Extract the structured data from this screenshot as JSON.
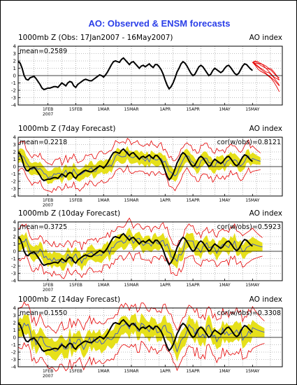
{
  "title": "AO: Observed & ENSM forecasts",
  "colors": {
    "title": "#2a3ee8",
    "observed": "#000000",
    "ensemble_range": "#e60000",
    "spread": "#e6e01a",
    "ensemble_mean": "#3a55d0",
    "grid": "#808080"
  },
  "chart_data": [
    {
      "type": "line",
      "header_left": "1000mb Z (Obs: 17Jan2007 - 16May2007)",
      "header_right": "AO index",
      "mean_label": "mean=0.2589",
      "cor_label": "",
      "ylim": [
        -4,
        4
      ],
      "yticks": [
        "4",
        "3",
        "2",
        "1",
        "0",
        "-1",
        "-2",
        "-3",
        "-4"
      ],
      "xticks": [
        "1FEB",
        "15FEB",
        "1MAR",
        "15MAR",
        "1APR",
        "15APR",
        "1MAY",
        "15MAY"
      ],
      "xtick_subtext": "2007",
      "x_range_days": [
        0,
        133
      ],
      "xtick_days": [
        15,
        29,
        43,
        57,
        74,
        88,
        104,
        118
      ],
      "observed": [
        1.9,
        1.7,
        1.0,
        0.0,
        -0.5,
        -0.6,
        -0.3,
        -0.2,
        -0.1,
        -0.4,
        -0.8,
        -1.2,
        -1.7,
        -1.9,
        -1.8,
        -1.7,
        -1.7,
        -1.6,
        -1.5,
        -1.5,
        -1.6,
        -1.3,
        -1.0,
        -1.2,
        -1.4,
        -1.0,
        -0.8,
        -0.9,
        -1.4,
        -1.6,
        -1.2,
        -1.0,
        -0.8,
        -0.6,
        -0.5,
        -0.6,
        -0.7,
        -0.7,
        -0.5,
        -0.3,
        -0.1,
        0.1,
        0.0,
        -0.2,
        0.1,
        0.5,
        1.0,
        1.5,
        1.9,
        2.0,
        1.9,
        1.8,
        2.2,
        2.4,
        2.1,
        1.8,
        1.5,
        1.8,
        1.9,
        1.6,
        1.3,
        1.0,
        1.3,
        1.4,
        1.2,
        1.4,
        1.6,
        1.3,
        1.1,
        1.5,
        1.5,
        1.2,
        0.8,
        0.2,
        -0.6,
        -1.3,
        -1.8,
        -1.5,
        -1.0,
        -0.3,
        0.5,
        1.0,
        1.6,
        1.9,
        1.7,
        1.3,
        0.8,
        0.3,
        0.0,
        0.2,
        0.7,
        1.2,
        1.4,
        1.2,
        0.8,
        0.4,
        0.0,
        0.2,
        0.7,
        1.0,
        0.8,
        0.6,
        0.4,
        0.6,
        1.0,
        1.3,
        1.4,
        1.1,
        0.7,
        0.3,
        0.1,
        0.3,
        0.8,
        1.3,
        1.6,
        1.5,
        1.2,
        0.9,
        0.7
      ],
      "ensemble_members": [
        [
          1.8,
          1.9,
          1.7,
          1.4,
          1.2,
          1.0,
          0.6,
          0.2,
          -0.2,
          -0.4,
          -0.6
        ],
        [
          1.8,
          1.6,
          1.3,
          1.0,
          0.8,
          0.5,
          0.4,
          0.1,
          -0.3,
          -0.8,
          -1.3
        ],
        [
          1.8,
          2.0,
          1.9,
          1.6,
          1.5,
          1.3,
          1.0,
          0.9,
          0.5,
          0.0,
          -0.6
        ],
        [
          1.8,
          1.4,
          0.9,
          0.6,
          0.4,
          0.2,
          -0.1,
          -0.4,
          -0.9,
          -1.5,
          -2.2
        ],
        [
          1.8,
          1.7,
          1.6,
          1.7,
          1.4,
          1.0,
          0.9,
          0.7,
          0.3,
          -0.1,
          -0.3
        ],
        [
          1.8,
          1.5,
          1.2,
          0.9,
          0.6,
          0.3,
          0.0,
          -0.3,
          -0.6,
          -1.0,
          -1.4
        ]
      ]
    },
    {
      "type": "line",
      "header_left": "1000mb Z (7day Forecast)",
      "header_right": "AO index",
      "mean_label": "mean=0.2218",
      "cor_label": "cor(w/obs)=0.8121",
      "lead_days": 7,
      "spread_half_width": 0.9,
      "ylim": [
        -4,
        4
      ],
      "yticks": [
        "4",
        "3",
        "2",
        "1",
        "0",
        "-1",
        "-2",
        "-3",
        "-4"
      ],
      "xticks": [
        "1FEB",
        "15FEB",
        "1MAR",
        "15MAR",
        "1APR",
        "15APR",
        "1MAY",
        "15MAY"
      ],
      "xtick_subtext": "2007"
    },
    {
      "type": "line",
      "header_left": "1000mb Z (10day Forecast)",
      "header_right": "AO index",
      "mean_label": "mean=0.3725",
      "cor_label": "cor(w/obs)=0.5923",
      "lead_days": 10,
      "spread_half_width": 1.0,
      "ylim": [
        -4,
        4
      ],
      "yticks": [
        "4",
        "3",
        "2",
        "1",
        "0",
        "-1",
        "-2",
        "-3",
        "-4"
      ],
      "xticks": [
        "1FEB",
        "15FEB",
        "1MAR",
        "15MAR",
        "1APR",
        "15APR",
        "1MAY",
        "15MAY"
      ],
      "xtick_subtext": "2007"
    },
    {
      "type": "line",
      "header_left": "1000mb Z (14day Forecast)",
      "header_right": "AO index",
      "mean_label": "mean=0.1550",
      "cor_label": "cor(w/obs)=0.3308",
      "lead_days": 14,
      "spread_half_width": 1.3,
      "ylim": [
        -4,
        4
      ],
      "yticks": [
        "4",
        "3",
        "2",
        "1",
        "0",
        "-1",
        "-2",
        "-3",
        "-4"
      ],
      "xticks": [
        "1FEB",
        "15FEB",
        "1MAR",
        "15MAR",
        "1APR",
        "15APR",
        "1MAY",
        "15MAY"
      ],
      "xtick_subtext": "2007"
    }
  ]
}
